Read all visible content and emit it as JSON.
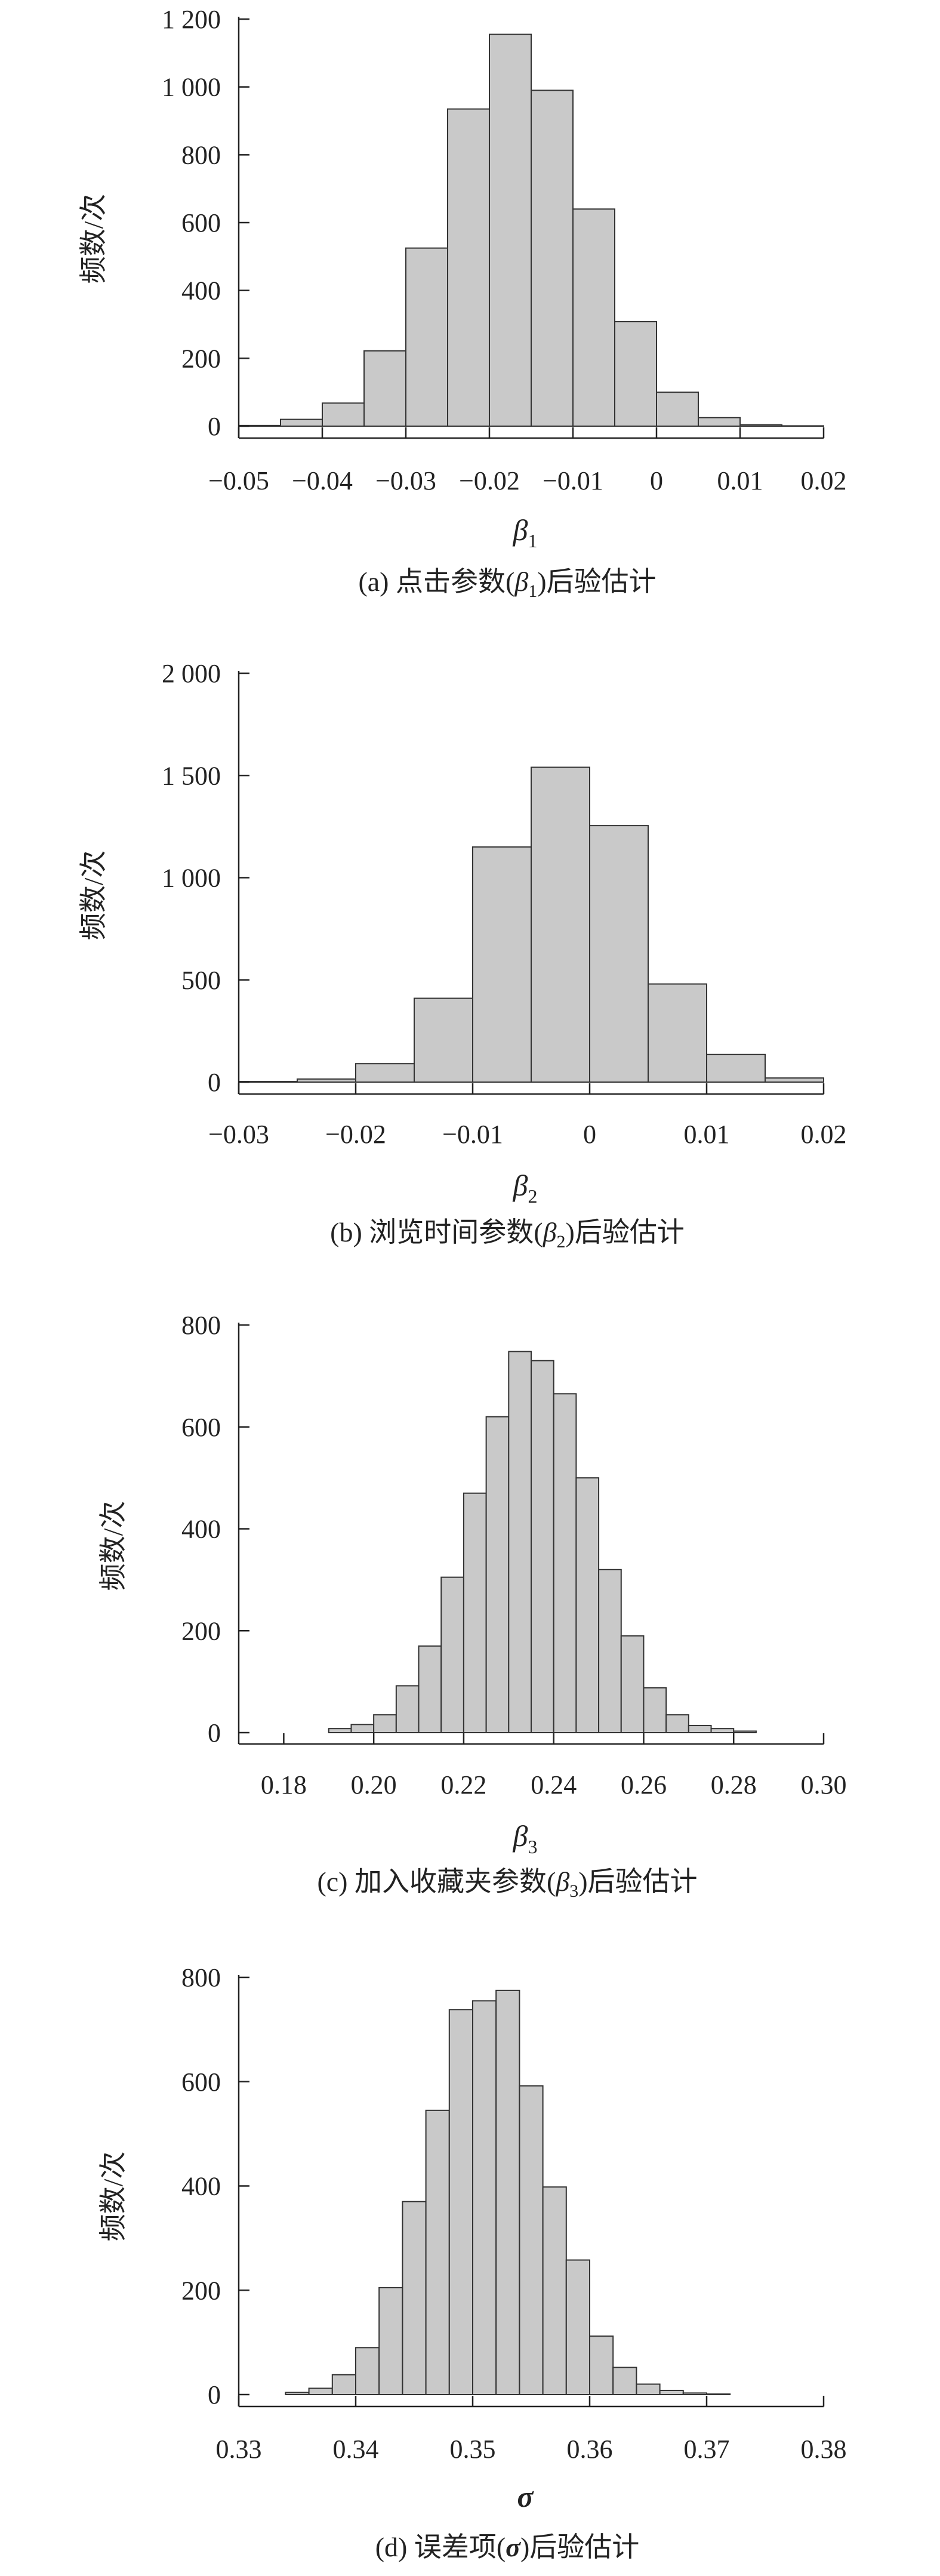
{
  "chart_data": [
    {
      "type": "bar",
      "title": "",
      "caption_prefix": "(a) 点击参数(",
      "caption_sym": "β",
      "caption_sub": "1",
      "caption_suffix": ")后验估计",
      "xlabel_sym": "β",
      "xlabel_sub": "1",
      "xlabel_bold": false,
      "ylabel": "频数/次",
      "xlim": [
        -0.05,
        0.02
      ],
      "ylim": [
        0,
        1200
      ],
      "xticks": [
        -0.05,
        -0.04,
        -0.03,
        -0.02,
        -0.01,
        0,
        0.01,
        0.02
      ],
      "xtick_labels": [
        "−0.05",
        "−0.04",
        "−0.03",
        "−0.02",
        "−0.01",
        "0",
        "0.01",
        "0.02"
      ],
      "yticks": [
        0,
        200,
        400,
        600,
        800,
        1000,
        1200
      ],
      "ytick_labels": [
        "0",
        "200",
        "400",
        "600",
        "800",
        "1 000",
        "1 200"
      ],
      "bin_edges": [
        -0.05,
        -0.045,
        -0.04,
        -0.035,
        -0.03,
        -0.025,
        -0.02,
        -0.015,
        -0.01,
        -0.005,
        0,
        0.005,
        0.01,
        0.015,
        0.02
      ],
      "values": [
        2,
        20,
        68,
        222,
        525,
        935,
        1155,
        990,
        640,
        308,
        100,
        25,
        4,
        1
      ]
    },
    {
      "type": "bar",
      "title": "",
      "caption_prefix": "(b) 浏览时间参数(",
      "caption_sym": "β",
      "caption_sub": "2",
      "caption_suffix": ")后验估计",
      "xlabel_sym": "β",
      "xlabel_sub": "2",
      "xlabel_bold": false,
      "ylabel": "频数/次",
      "xlim": [
        -0.03,
        0.02
      ],
      "ylim": [
        0,
        2000
      ],
      "xticks": [
        -0.03,
        -0.02,
        -0.01,
        0,
        0.01,
        0.02
      ],
      "xtick_labels": [
        "−0.03",
        "−0.02",
        "−0.01",
        "0",
        "0.01",
        "0.02"
      ],
      "yticks": [
        0,
        500,
        1000,
        1500,
        2000
      ],
      "ytick_labels": [
        "0",
        "500",
        "1 000",
        "1 500",
        "2 000"
      ],
      "bin_edges": [
        -0.03,
        -0.025,
        -0.02,
        -0.015,
        -0.01,
        -0.005,
        0,
        0.005,
        0.01,
        0.015,
        0.02
      ],
      "values": [
        3,
        15,
        90,
        410,
        1150,
        1540,
        1255,
        480,
        135,
        20
      ]
    },
    {
      "type": "bar",
      "title": "",
      "caption_prefix": "(c) 加入收藏夹参数(",
      "caption_sym": "β",
      "caption_sub": "3",
      "caption_suffix": ")后验估计",
      "xlabel_sym": "β",
      "xlabel_sub": "3",
      "xlabel_bold": false,
      "ylabel": "频数/次",
      "xlim": [
        0.17,
        0.3
      ],
      "ylim": [
        0,
        800
      ],
      "xticks": [
        0.18,
        0.2,
        0.22,
        0.24,
        0.26,
        0.28,
        0.3
      ],
      "xtick_labels": [
        "0.18",
        "0.20",
        "0.22",
        "0.24",
        "0.26",
        "0.28",
        "0.30"
      ],
      "yticks": [
        0,
        200,
        400,
        600,
        800
      ],
      "ytick_labels": [
        "0",
        "200",
        "400",
        "600",
        "800"
      ],
      "bin_edges": [
        0.19,
        0.195,
        0.2,
        0.205,
        0.21,
        0.215,
        0.22,
        0.225,
        0.23,
        0.235,
        0.24,
        0.245,
        0.25,
        0.255,
        0.26,
        0.265,
        0.27,
        0.275,
        0.28,
        0.285
      ],
      "values": [
        8,
        16,
        35,
        92,
        170,
        305,
        470,
        620,
        748,
        730,
        665,
        500,
        320,
        190,
        88,
        35,
        14,
        8,
        3
      ]
    },
    {
      "type": "bar",
      "title": "",
      "caption_prefix": "(d) 误差项(",
      "caption_sym": "σ",
      "caption_sub": "",
      "caption_suffix": ")后验估计",
      "xlabel_sym": "σ",
      "xlabel_sub": "",
      "xlabel_bold": true,
      "ylabel": "频数/次",
      "xlim": [
        0.33,
        0.38
      ],
      "ylim": [
        0,
        800
      ],
      "xticks": [
        0.33,
        0.34,
        0.35,
        0.36,
        0.37,
        0.38
      ],
      "xtick_labels": [
        "0.33",
        "0.34",
        "0.35",
        "0.36",
        "0.37",
        "0.38"
      ],
      "yticks": [
        0,
        200,
        400,
        600,
        800
      ],
      "ytick_labels": [
        "0",
        "200",
        "400",
        "600",
        "800"
      ],
      "bin_edges": [
        0.334,
        0.336,
        0.338,
        0.34,
        0.342,
        0.344,
        0.346,
        0.348,
        0.35,
        0.352,
        0.354,
        0.356,
        0.358,
        0.36,
        0.362,
        0.364,
        0.366,
        0.368,
        0.37,
        0.372
      ],
      "values": [
        4,
        12,
        38,
        90,
        205,
        370,
        545,
        738,
        755,
        775,
        592,
        398,
        258,
        112,
        52,
        20,
        8,
        3,
        1
      ]
    }
  ]
}
